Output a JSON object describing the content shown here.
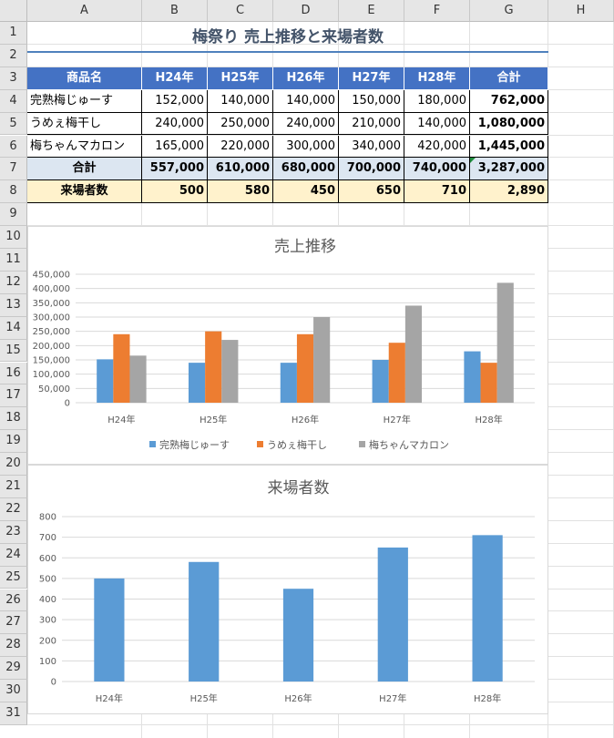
{
  "columns": [
    "A",
    "B",
    "C",
    "D",
    "E",
    "F",
    "G",
    "H"
  ],
  "rows": [
    "1",
    "2",
    "3",
    "4",
    "5",
    "6",
    "7",
    "8",
    "9",
    "10",
    "11",
    "12",
    "13",
    "14",
    "15",
    "16",
    "17",
    "18",
    "19",
    "20",
    "21",
    "22",
    "23",
    "24",
    "25",
    "26",
    "27",
    "28",
    "29",
    "30",
    "31"
  ],
  "title": "梅祭り 売上推移と来場者数",
  "table": {
    "header": [
      "商品名",
      "H24年",
      "H25年",
      "H26年",
      "H27年",
      "H28年",
      "合計"
    ],
    "products": [
      {
        "name": "完熟梅じゅーす",
        "values": [
          "152,000",
          "140,000",
          "140,000",
          "150,000",
          "180,000"
        ],
        "total": "762,000"
      },
      {
        "name": "うめぇ梅干し",
        "values": [
          "240,000",
          "250,000",
          "240,000",
          "210,000",
          "140,000"
        ],
        "total": "1,080,000"
      },
      {
        "name": "梅ちゃんマカロン",
        "values": [
          "165,000",
          "220,000",
          "300,000",
          "340,000",
          "420,000"
        ],
        "total": "1,445,000"
      }
    ],
    "total_row": {
      "label": "合計",
      "values": [
        "557,000",
        "610,000",
        "680,000",
        "700,000",
        "740,000"
      ],
      "total": "3,287,000"
    },
    "visitors_row": {
      "label": "来場者数",
      "values": [
        "500",
        "580",
        "450",
        "650",
        "710"
      ],
      "total": "2,890"
    }
  },
  "chart_data": [
    {
      "type": "bar",
      "title": "売上推移",
      "categories": [
        "H24年",
        "H25年",
        "H26年",
        "H27年",
        "H28年"
      ],
      "series": [
        {
          "name": "完熟梅じゅーす",
          "values": [
            152000,
            140000,
            140000,
            150000,
            180000
          ],
          "color": "#5b9bd5"
        },
        {
          "name": "うめぇ梅干し",
          "values": [
            240000,
            250000,
            240000,
            210000,
            140000
          ],
          "color": "#ed7d31"
        },
        {
          "name": "梅ちゃんマカロン",
          "values": [
            165000,
            220000,
            300000,
            340000,
            420000
          ],
          "color": "#a5a5a5"
        }
      ],
      "ylim": [
        0,
        450000
      ],
      "yticks": [
        "0",
        "50,000",
        "100,000",
        "150,000",
        "200,000",
        "250,000",
        "300,000",
        "350,000",
        "400,000",
        "450,000"
      ],
      "legend": "bottom",
      "grid": true
    },
    {
      "type": "bar",
      "title": "来場者数",
      "categories": [
        "H24年",
        "H25年",
        "H26年",
        "H27年",
        "H28年"
      ],
      "series": [
        {
          "values": [
            500,
            580,
            450,
            650,
            710
          ],
          "color": "#5b9bd5"
        }
      ],
      "ylim": [
        0,
        800
      ],
      "yticks": [
        "0",
        "100",
        "200",
        "300",
        "400",
        "500",
        "600",
        "700",
        "800"
      ],
      "grid": true
    }
  ]
}
